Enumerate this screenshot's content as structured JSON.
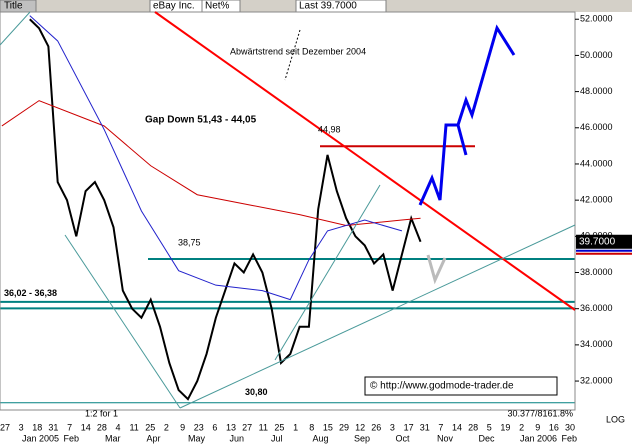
{
  "header": {
    "title": "Title",
    "symbol": "eBay Inc.",
    "mode": "Net%",
    "last": "Last 39.7000"
  },
  "chart_data": {
    "type": "line",
    "xlim": [
      -3.2,
      58.6
    ],
    "ylim": [
      30.4,
      52.4
    ],
    "yticks": [
      {
        "value": 32,
        "label": "32.0000"
      },
      {
        "value": 34,
        "label": "34.0000"
      },
      {
        "value": 36,
        "label": "36.0000"
      },
      {
        "value": 38,
        "label": "38.0000"
      },
      {
        "value": 40,
        "label": "40.0000"
      },
      {
        "value": 42,
        "label": "42.0000"
      },
      {
        "value": 44,
        "label": "44.0000"
      },
      {
        "value": 46,
        "label": "46.0000"
      },
      {
        "value": 48,
        "label": "48.0000"
      },
      {
        "value": 50,
        "label": "50.0000"
      },
      {
        "value": 52,
        "label": "52.0000"
      }
    ],
    "log_scale": true,
    "day_labels": [
      "27",
      "3",
      "18",
      "31",
      "7",
      "14",
      "28",
      "4",
      "11",
      "25",
      "2",
      "9",
      "23",
      "6",
      "13",
      "27",
      "11",
      "25",
      "1",
      "8",
      "15",
      "29",
      "12",
      "26",
      "3",
      "17",
      "31",
      "7",
      "14",
      "28",
      "5",
      "19",
      "2",
      "9",
      "16",
      "30"
    ],
    "month_labels": [
      "Jan 2005",
      "Feb",
      "Mar",
      "Apr",
      "May",
      "Jun",
      "Jul",
      "Aug",
      "Sep",
      "Oct",
      "Nov",
      "Dec",
      "Jan 2006",
      "Feb"
    ],
    "series": [
      {
        "color": "#000000",
        "x": [
          0,
          1,
          2,
          3,
          4,
          5,
          6,
          7,
          8,
          9,
          10,
          11,
          12,
          13,
          14,
          15,
          16,
          17,
          18,
          19,
          20,
          21,
          22,
          23,
          24,
          25,
          26,
          27,
          28,
          29,
          30,
          31,
          32,
          33,
          34,
          35,
          36,
          37,
          38,
          39,
          40,
          41,
          42
        ],
        "values": [
          52,
          51.5,
          50.5,
          43,
          42,
          40,
          42.5,
          43,
          42,
          40.5,
          37,
          36,
          35.5,
          36.5,
          35,
          33,
          31.5,
          31,
          32,
          33.5,
          35.5,
          37,
          38.5,
          38,
          39,
          38,
          36,
          33,
          33.5,
          35,
          35,
          41.5,
          44.5,
          42.5,
          41,
          40,
          39.5,
          38.5,
          39,
          37,
          39,
          41,
          39.7
        ]
      },
      {
        "color": "#cc0000",
        "x": [
          -3,
          1,
          8,
          13,
          18,
          24,
          29,
          34,
          40,
          42
        ],
        "values": [
          46.1,
          47.5,
          46.1,
          43.9,
          42.3,
          41.7,
          41.2,
          40.6,
          40.9,
          41
        ]
      },
      {
        "color": "#2222cc",
        "x": [
          0,
          3,
          8,
          12,
          16,
          20,
          25,
          28,
          30,
          32,
          36,
          40
        ],
        "values": [
          52.2,
          50.8,
          45.9,
          41.4,
          38.1,
          37.3,
          37,
          36.5,
          38.7,
          40.3,
          40.9,
          40.3
        ]
      }
    ],
    "last_value": {
      "value": 39.7,
      "label": "39.7000"
    },
    "levels": [
      {
        "value": 44.98,
        "label": "44,98",
        "color": "#cc0000"
      },
      {
        "value": 38.75,
        "label": "38,75",
        "color": "#008080"
      },
      {
        "value": 30.8,
        "label": "30,80",
        "color": "#008080"
      }
    ],
    "zone": {
      "values": [
        36.02,
        36.38
      ],
      "label": "36,02 - 36,38",
      "color": "#008080"
    },
    "annotations": {
      "trend": "Abwärtstrend seit Dezember 2004",
      "gap": "Gap Down 51,43 - 44,05",
      "split": "1:2 for 1",
      "copyright": "© http://www.godmode-trader.de",
      "corner": "30.377/8161.8%",
      "scale": "LOG"
    }
  }
}
